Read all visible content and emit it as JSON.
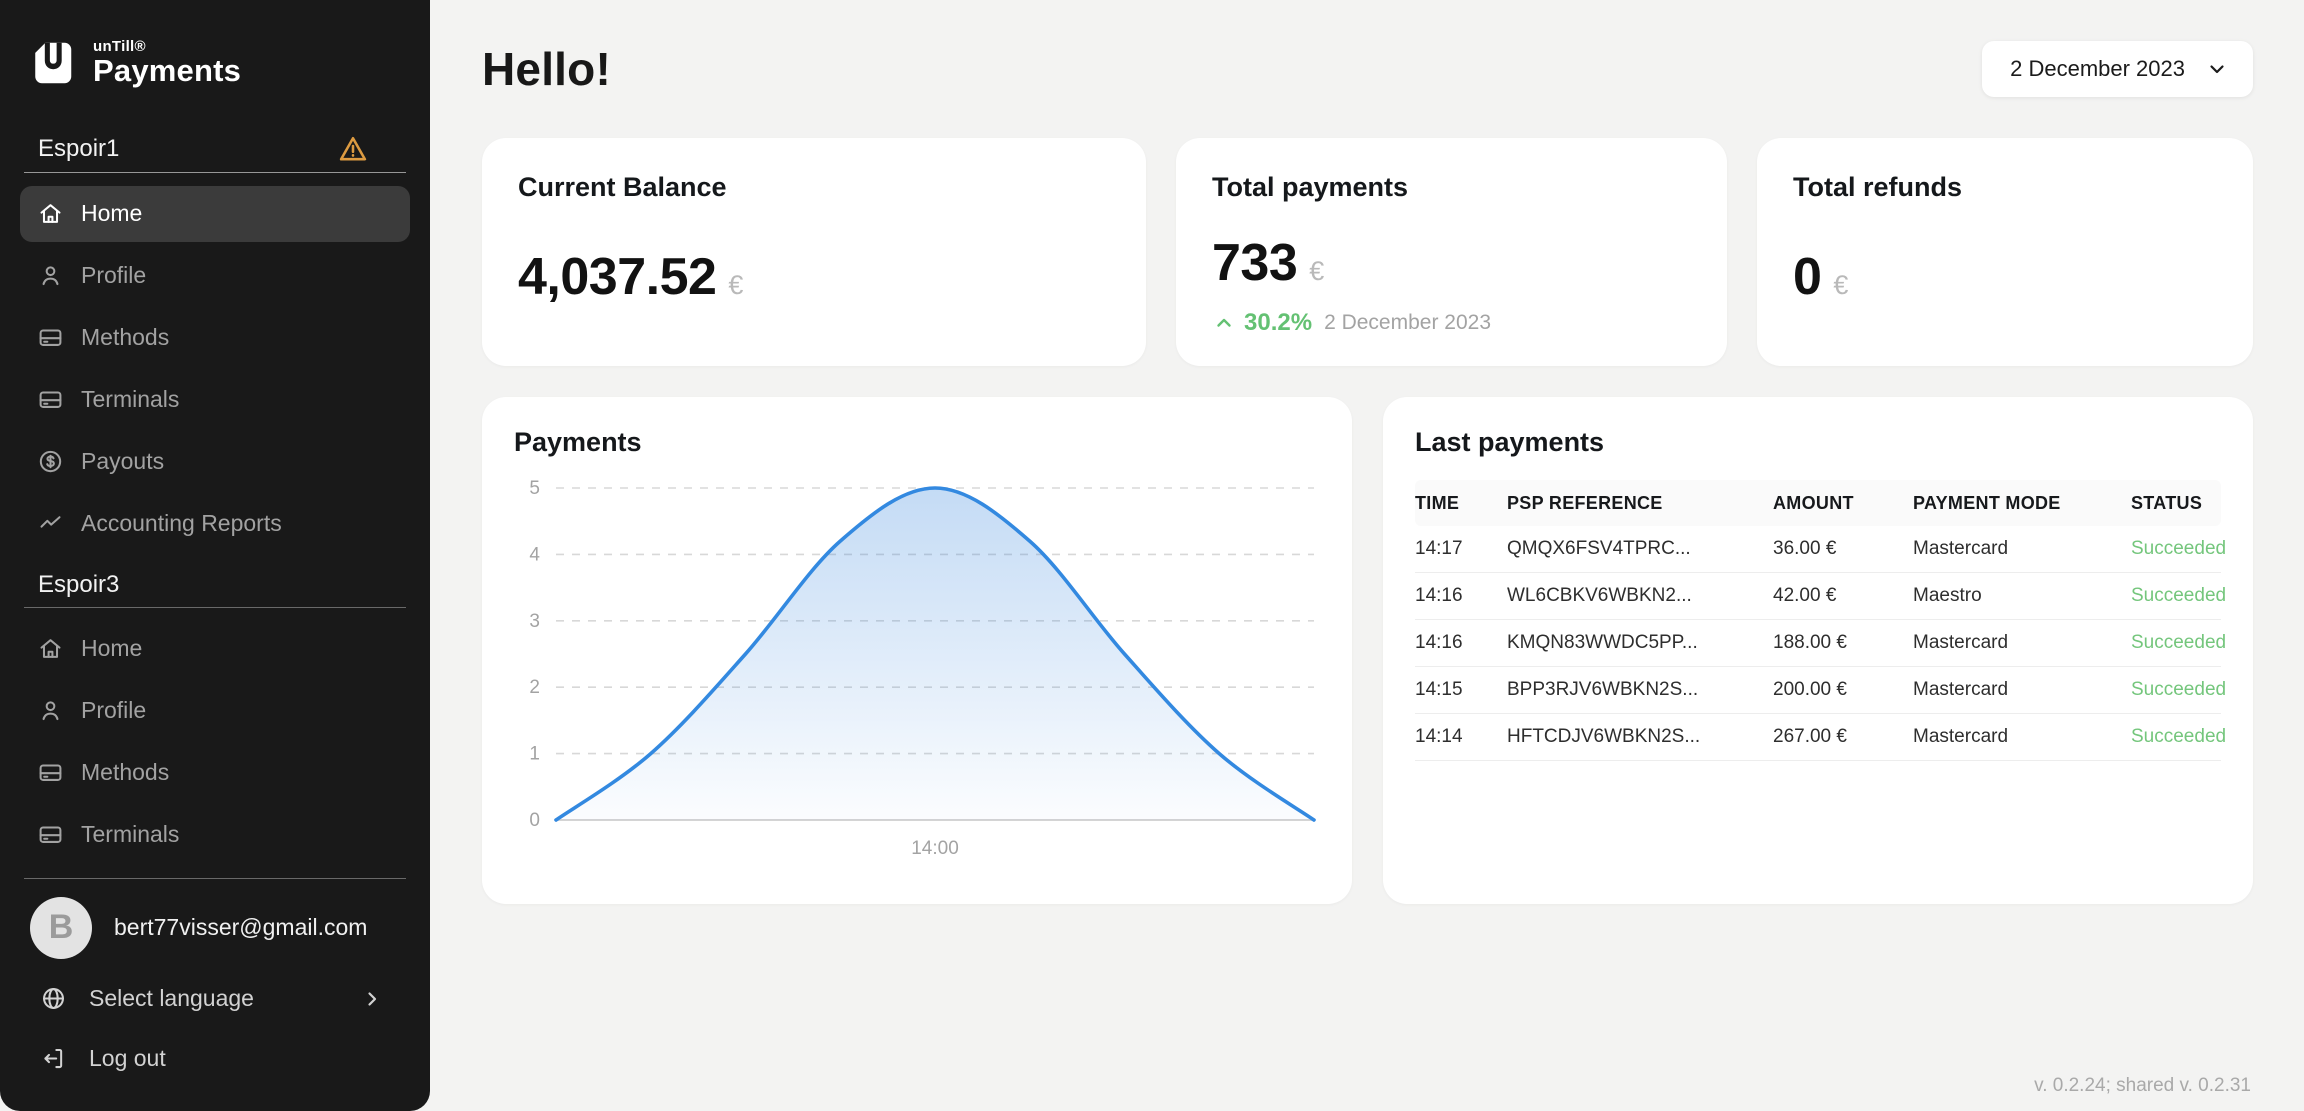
{
  "brand": {
    "name_small": "unTill®",
    "name_main": "Payments"
  },
  "sidebar": {
    "sections": [
      {
        "title": "Espoir1",
        "has_warning": true,
        "items": [
          {
            "label": "Home",
            "icon": "home-icon",
            "active": true
          },
          {
            "label": "Profile",
            "icon": "user-icon",
            "active": false
          },
          {
            "label": "Methods",
            "icon": "credit-card-icon",
            "active": false
          },
          {
            "label": "Terminals",
            "icon": "credit-card-icon",
            "active": false
          },
          {
            "label": "Payouts",
            "icon": "dollar-circle-icon",
            "active": false
          },
          {
            "label": "Accounting Reports",
            "icon": "trend-icon",
            "active": false
          }
        ]
      },
      {
        "title": "Espoir3",
        "has_warning": false,
        "items": [
          {
            "label": "Home",
            "icon": "home-icon",
            "active": false
          },
          {
            "label": "Profile",
            "icon": "user-icon",
            "active": false
          },
          {
            "label": "Methods",
            "icon": "credit-card-icon",
            "active": false
          },
          {
            "label": "Terminals",
            "icon": "credit-card-icon",
            "active": false
          }
        ]
      }
    ],
    "user": {
      "initial": "B",
      "email": "bert77visser@gmail.com"
    },
    "language_label": "Select language",
    "logout_label": "Log out"
  },
  "header": {
    "greeting": "Hello!",
    "date_selector_value": "2 December 2023"
  },
  "stats": {
    "balance": {
      "title": "Current Balance",
      "value": "4,037.52",
      "currency": "€"
    },
    "payments": {
      "title": "Total payments",
      "value": "733",
      "currency": "€",
      "change": "30.2%",
      "change_direction": "up",
      "change_date": "2 December 2023"
    },
    "refunds": {
      "title": "Total refunds",
      "value": "0",
      "currency": "€"
    }
  },
  "chart_card": {
    "title": "Payments"
  },
  "chart_data": {
    "type": "area",
    "title": "Payments",
    "y_axis": {
      "min": 0,
      "max": 5,
      "ticks": [
        0,
        1,
        2,
        3,
        4,
        5
      ]
    },
    "x_axis": {
      "visible_tick": "14:00",
      "tick_position": 0.5
    },
    "grid": "dashed-horizontal",
    "legend": "none",
    "line_color": "#3389e0",
    "fill_color": "#3a87dd",
    "points": [
      {
        "x": 0,
        "y": 0
      },
      {
        "x": 0.125,
        "y": 1.0
      },
      {
        "x": 0.25,
        "y": 2.5
      },
      {
        "x": 0.375,
        "y": 4.2
      },
      {
        "x": 0.5,
        "y": 5
      },
      {
        "x": 0.625,
        "y": 4.2
      },
      {
        "x": 0.75,
        "y": 2.5
      },
      {
        "x": 0.875,
        "y": 1.0
      },
      {
        "x": 1,
        "y": 0
      }
    ]
  },
  "last_payments": {
    "title": "Last payments",
    "columns": [
      "TIME",
      "PSP REFERENCE",
      "AMOUNT",
      "PAYMENT MODE",
      "STATUS"
    ],
    "rows": [
      {
        "time": "14:17",
        "psp_reference": "QMQX6FSV4TPRC...",
        "amount": "36.00 €",
        "payment_mode": "Mastercard",
        "status": "Succeeded"
      },
      {
        "time": "14:16",
        "psp_reference": "WL6CBKV6WBKN2...",
        "amount": "42.00 €",
        "payment_mode": "Maestro",
        "status": "Succeeded"
      },
      {
        "time": "14:16",
        "psp_reference": "KMQN83WWDC5PP...",
        "amount": "188.00 €",
        "payment_mode": "Mastercard",
        "status": "Succeeded"
      },
      {
        "time": "14:15",
        "psp_reference": "BPP3RJV6WBKN2S...",
        "amount": "200.00 €",
        "payment_mode": "Mastercard",
        "status": "Succeeded"
      },
      {
        "time": "14:14",
        "psp_reference": "HFTCDJV6WBKN2S...",
        "amount": "267.00 €",
        "payment_mode": "Mastercard",
        "status": "Succeeded"
      }
    ]
  },
  "footer": {
    "version": "v. 0.2.24; shared v. 0.2.31"
  },
  "colors": {
    "sidebar_bg": "#191919",
    "active_item_bg": "#3b3b3b",
    "page_bg": "#f3f3f2",
    "accent_blue": "#3389e0",
    "success_green": "#6bc476",
    "warning_orange": "#dd9b41"
  }
}
